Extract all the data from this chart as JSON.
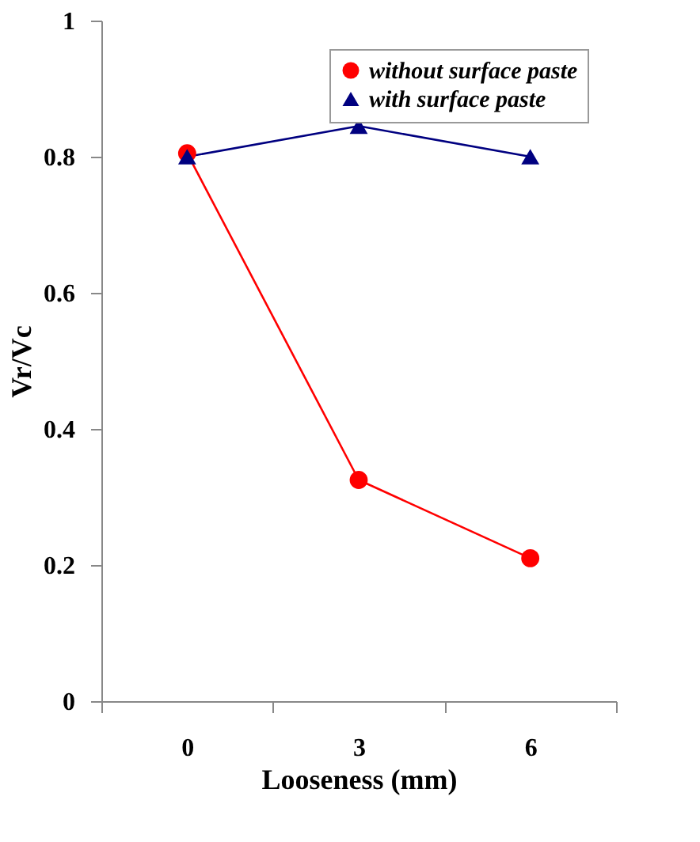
{
  "chart_data": {
    "type": "line",
    "xlabel": "Looseness (mm)",
    "ylabel": "Vr/Vc",
    "categories": [
      "0",
      "3",
      "6"
    ],
    "series": [
      {
        "name": "without surface paste",
        "color": "#ff0000",
        "marker": "circle",
        "values": [
          0.805,
          0.325,
          0.21
        ]
      },
      {
        "name": "with surface paste",
        "color": "#000080",
        "marker": "triangle",
        "values": [
          0.8,
          0.845,
          0.8
        ]
      }
    ],
    "ylim": [
      0,
      1
    ],
    "yticks": [
      0,
      0.2,
      0.4,
      0.6,
      0.8,
      1
    ],
    "grid": false,
    "legend": "top right"
  }
}
